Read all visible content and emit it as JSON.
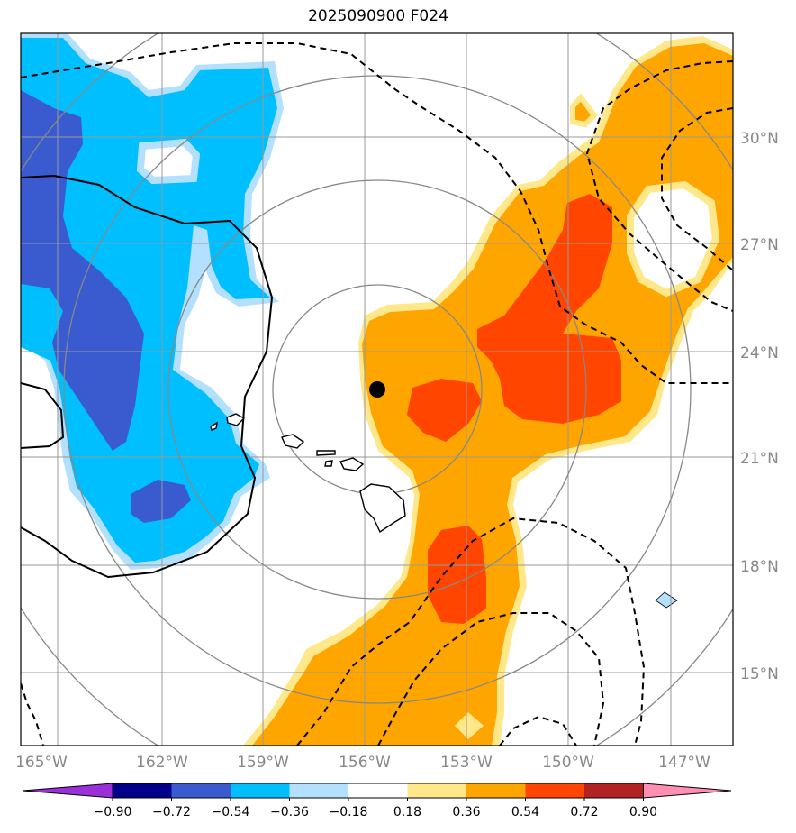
{
  "title": "2025090900 F024",
  "map": {
    "lon_ticks": [
      "165°W",
      "162°W",
      "159°W",
      "156°W",
      "153°W",
      "150°W",
      "147°W"
    ],
    "lat_ticks": [
      "30°N",
      "27°N",
      "24°N",
      "21°N",
      "18°N",
      "15°N"
    ],
    "center_marker": {
      "lon": -155.6,
      "lat": 22.9
    }
  },
  "colorbar": {
    "ticks": [
      "−0.90",
      "−0.72",
      "−0.54",
      "−0.36",
      "−0.18",
      "0.18",
      "0.36",
      "0.54",
      "0.72",
      "0.90"
    ],
    "colors": [
      "#9b30d9",
      "#00008b",
      "#3a5bcf",
      "#00bfff",
      "#b3e0ff",
      "#ffffff",
      "#ffe88a",
      "#ffa500",
      "#ff4500",
      "#b22222",
      "#ff8fb3"
    ]
  },
  "colors": {
    "grid": "#999999",
    "range_rings": "#888888",
    "coast": "#000000",
    "deep_blue": "#3a5bcf",
    "sky_blue": "#00bfff",
    "light_blue": "#b3e0ff",
    "yellow": "#ffe88a",
    "orange": "#ffa500",
    "red_orange": "#ff4500"
  }
}
